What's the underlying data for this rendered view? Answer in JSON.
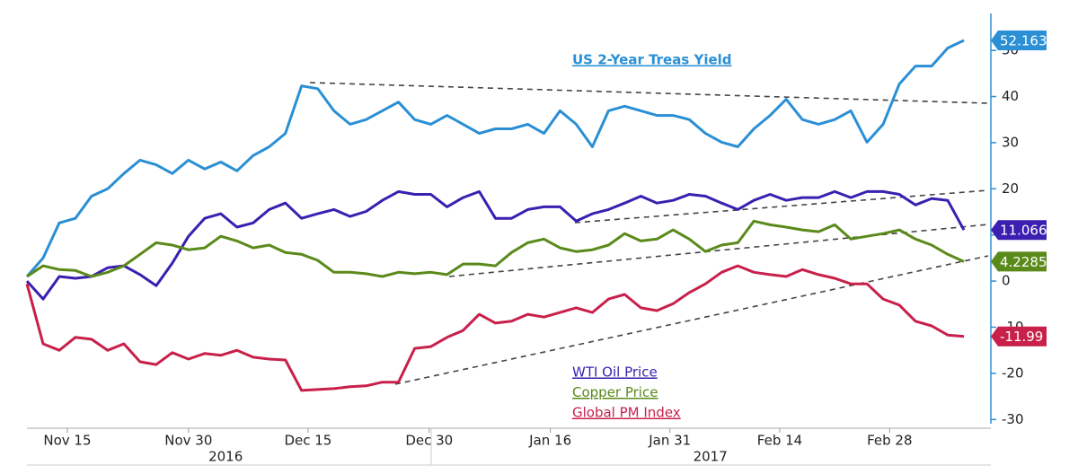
{
  "chart_data": {
    "type": "line",
    "title": "US 2-Year Treas Yield",
    "xlim": [
      0,
      59.5
    ],
    "xticks": [
      {
        "value": 2.5,
        "label": "Nov 15"
      },
      {
        "value": 10,
        "label": "Nov 30"
      },
      {
        "value": 17.4,
        "label": "Dec 15"
      },
      {
        "value": 24.9,
        "label": "Dec 30"
      },
      {
        "value": 32.4,
        "label": "Jan 16"
      },
      {
        "value": 39.8,
        "label": "Jan 31"
      },
      {
        "value": 46.6,
        "label": "Feb 14"
      },
      {
        "value": 53.4,
        "label": "Feb 28"
      }
    ],
    "x_group_labels": [
      {
        "value": 12.3,
        "label": "2016"
      },
      {
        "value": 42.3,
        "label": "2017"
      }
    ],
    "ylim": [
      -31.5,
      58
    ],
    "yticks": [
      -30,
      -20,
      -10,
      0,
      10,
      20,
      30,
      40,
      50
    ],
    "y_axis_side": "right",
    "series": [
      {
        "name": "US 2-Year Treas Yield",
        "color": "#2a8fd4",
        "values": [
          1,
          5,
          12.6,
          13.6,
          18.4,
          20,
          23.3,
          26.2,
          25.2,
          23.3,
          26.2,
          24.3,
          25.8,
          23.9,
          27.2,
          29.1,
          32,
          42.3,
          41.7,
          36.9,
          34,
          35,
          36.9,
          38.8,
          35,
          34,
          35.9,
          34,
          32,
          33,
          33,
          34,
          32,
          36.9,
          34,
          29.1,
          36.9,
          37.9,
          36.9,
          35.9,
          35.9,
          35,
          32,
          30.1,
          29.1,
          33,
          35.9,
          39.4,
          35,
          34,
          35,
          36.9,
          30.1,
          34,
          42.7,
          46.6,
          46.6,
          50.5,
          52.163
        ]
      },
      {
        "name": "WTI Oil Price",
        "color": "#3a1fb0",
        "values": [
          0,
          -3.9,
          1,
          0.6,
          1,
          2.9,
          3.3,
          1.4,
          -1,
          3.9,
          9.7,
          13.6,
          14.6,
          11.7,
          12.6,
          15.5,
          16.9,
          13.6,
          14.6,
          15.5,
          14,
          15.1,
          17.5,
          19.4,
          18.8,
          18.8,
          16.1,
          18.1,
          19.4,
          13.6,
          13.6,
          15.5,
          16.1,
          16.1,
          13,
          14.6,
          15.5,
          16.9,
          18.4,
          16.9,
          17.5,
          18.8,
          18.4,
          16.9,
          15.5,
          17.5,
          18.8,
          17.5,
          18.1,
          18.1,
          19.4,
          18.1,
          19.4,
          19.4,
          18.8,
          16.5,
          17.9,
          17.5,
          11.066
        ]
      },
      {
        "name": "Copper Price",
        "color": "#5a8a1a",
        "values": [
          1,
          3.3,
          2.5,
          2.3,
          1,
          1.9,
          3.3,
          5.8,
          8.3,
          7.8,
          6.8,
          7.2,
          9.7,
          8.7,
          7.2,
          7.8,
          6.2,
          5.8,
          4.5,
          1.9,
          1.9,
          1.6,
          1,
          1.9,
          1.6,
          1.9,
          1.4,
          3.7,
          3.7,
          3.3,
          6.2,
          8.3,
          9.1,
          7.2,
          6.4,
          6.8,
          7.8,
          10.3,
          8.7,
          9.1,
          11.1,
          9.1,
          6.4,
          7.8,
          8.3,
          13,
          12.2,
          11.7,
          11.1,
          10.7,
          12.2,
          9.1,
          9.7,
          10.3,
          11.1,
          9.1,
          7.8,
          5.8,
          4.2285
        ]
      },
      {
        "name": "Global PM Index",
        "color": "#c8204a",
        "values": [
          -0.6,
          -13.6,
          -15,
          -12.2,
          -12.6,
          -15,
          -13.6,
          -17.5,
          -18.1,
          -15.5,
          -16.9,
          -15.7,
          -16.1,
          -15,
          -16.5,
          -16.9,
          -17.1,
          -23.7,
          -23.5,
          -23.3,
          -22.9,
          -22.7,
          -21.9,
          -21.9,
          -14.6,
          -14.2,
          -12.2,
          -10.7,
          -7.2,
          -9.1,
          -8.7,
          -7.2,
          -7.8,
          -6.8,
          -5.8,
          -6.8,
          -3.9,
          -2.9,
          -5.8,
          -6.4,
          -4.9,
          -2.5,
          -0.6,
          1.9,
          3.3,
          1.9,
          1.4,
          1,
          2.5,
          1.4,
          0.6,
          -0.6,
          -0.6,
          -3.9,
          -5.2,
          -8.7,
          -9.7,
          -11.7,
          -11.99
        ]
      }
    ]
  }
}
